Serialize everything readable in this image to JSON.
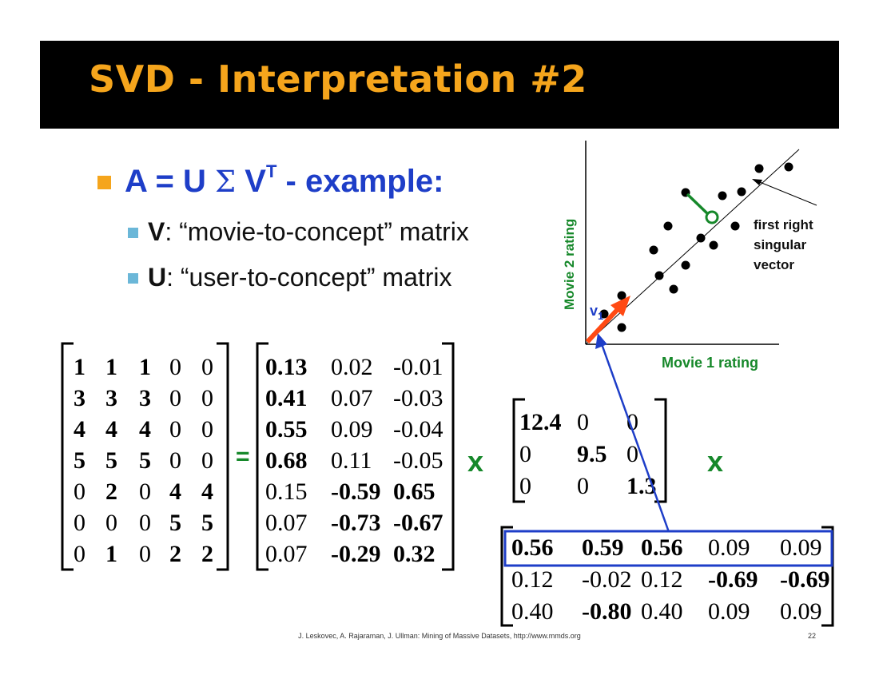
{
  "title": "SVD - Interpretation #2",
  "bullet_main": {
    "prefix": "A = U ",
    "sigma": "Σ",
    "v": " V",
    "superscript": "T",
    "suffix": " - example:"
  },
  "sub_bullets": [
    {
      "label": "V",
      "text": ": “movie-to-concept” matrix"
    },
    {
      "label": "U",
      "text": ": “user-to-concept” matrix"
    }
  ],
  "plot": {
    "x_label": "Movie 1 rating",
    "y_label": "Movie 2 rating",
    "annotation_lines": [
      "first right",
      "singular",
      "vector"
    ],
    "vector_label": "v",
    "vector_subscript": "1"
  },
  "operators": {
    "equals": "=",
    "times1": "x",
    "times2": "x"
  },
  "matrix_A": [
    [
      {
        "v": "1",
        "b": true
      },
      {
        "v": "1",
        "b": true
      },
      {
        "v": "1",
        "b": true
      },
      {
        "v": "0",
        "b": false
      },
      {
        "v": "0",
        "b": false
      }
    ],
    [
      {
        "v": "3",
        "b": true
      },
      {
        "v": "3",
        "b": true
      },
      {
        "v": "3",
        "b": true
      },
      {
        "v": "0",
        "b": false
      },
      {
        "v": "0",
        "b": false
      }
    ],
    [
      {
        "v": "4",
        "b": true
      },
      {
        "v": "4",
        "b": true
      },
      {
        "v": "4",
        "b": true
      },
      {
        "v": "0",
        "b": false
      },
      {
        "v": "0",
        "b": false
      }
    ],
    [
      {
        "v": "5",
        "b": true
      },
      {
        "v": "5",
        "b": true
      },
      {
        "v": "5",
        "b": true
      },
      {
        "v": "0",
        "b": false
      },
      {
        "v": "0",
        "b": false
      }
    ],
    [
      {
        "v": "0",
        "b": false
      },
      {
        "v": "2",
        "b": true
      },
      {
        "v": "0",
        "b": false
      },
      {
        "v": "4",
        "b": true
      },
      {
        "v": "4",
        "b": true
      }
    ],
    [
      {
        "v": "0",
        "b": false
      },
      {
        "v": "0",
        "b": false
      },
      {
        "v": "0",
        "b": false
      },
      {
        "v": "5",
        "b": true
      },
      {
        "v": "5",
        "b": true
      }
    ],
    [
      {
        "v": "0",
        "b": false
      },
      {
        "v": "1",
        "b": true
      },
      {
        "v": "0",
        "b": false
      },
      {
        "v": "2",
        "b": true
      },
      {
        "v": "2",
        "b": true
      }
    ]
  ],
  "matrix_U": [
    [
      {
        "v": "0.13",
        "b": true
      },
      {
        "v": "0.02",
        "b": false
      },
      {
        "v": "-0.01",
        "b": false
      }
    ],
    [
      {
        "v": "0.41",
        "b": true
      },
      {
        "v": "0.07",
        "b": false
      },
      {
        "v": "-0.03",
        "b": false
      }
    ],
    [
      {
        "v": "0.55",
        "b": true
      },
      {
        "v": "0.09",
        "b": false
      },
      {
        "v": "-0.04",
        "b": false
      }
    ],
    [
      {
        "v": "0.68",
        "b": true
      },
      {
        "v": "0.11",
        "b": false
      },
      {
        "v": "-0.05",
        "b": false
      }
    ],
    [
      {
        "v": "0.15",
        "b": false
      },
      {
        "v": "-0.59",
        "b": true
      },
      {
        "v": "0.65",
        "b": true
      }
    ],
    [
      {
        "v": "0.07",
        "b": false
      },
      {
        "v": "-0.73",
        "b": true
      },
      {
        "v": "-0.67",
        "b": true
      }
    ],
    [
      {
        "v": "0.07",
        "b": false
      },
      {
        "v": "-0.29",
        "b": true
      },
      {
        "v": "0.32",
        "b": true
      }
    ]
  ],
  "matrix_Sigma": [
    [
      {
        "v": "12.4",
        "b": true
      },
      {
        "v": "0",
        "b": false
      },
      {
        "v": "0",
        "b": false
      }
    ],
    [
      {
        "v": "0",
        "b": false
      },
      {
        "v": "9.5",
        "b": true
      },
      {
        "v": "0",
        "b": false
      }
    ],
    [
      {
        "v": "0",
        "b": false
      },
      {
        "v": "0",
        "b": false
      },
      {
        "v": "1.3",
        "b": true
      }
    ]
  ],
  "matrix_VT": [
    [
      {
        "v": "0.56",
        "b": true
      },
      {
        "v": "0.59",
        "b": true
      },
      {
        "v": "0.56",
        "b": true
      },
      {
        "v": "0.09",
        "b": false
      },
      {
        "v": "0.09",
        "b": false
      }
    ],
    [
      {
        "v": "0.12",
        "b": false
      },
      {
        "v": "-0.02",
        "b": false
      },
      {
        "v": "0.12",
        "b": false
      },
      {
        "v": "-0.69",
        "b": true
      },
      {
        "v": "-0.69",
        "b": true
      }
    ],
    [
      {
        "v": "0.40",
        "b": false
      },
      {
        "v": "-0.80",
        "b": true
      },
      {
        "v": "0.40",
        "b": false
      },
      {
        "v": "0.09",
        "b": false
      },
      {
        "v": "0.09",
        "b": false
      }
    ]
  ],
  "footer": "J. Leskovec, A. Rajaraman, J. Ullman: Mining of Massive Datasets, http://www.mmds.org",
  "page_number": "22",
  "colors": {
    "title_bg": "#000000",
    "title_text": "#f5a51c",
    "bullet_main": "#1e3ec8",
    "bullet_marker": "#f5a51c",
    "sub_marker": "#6bb7d8",
    "plot_label": "#16882a",
    "vector": "#ff4a14",
    "highlight": "#1e3ec8"
  }
}
